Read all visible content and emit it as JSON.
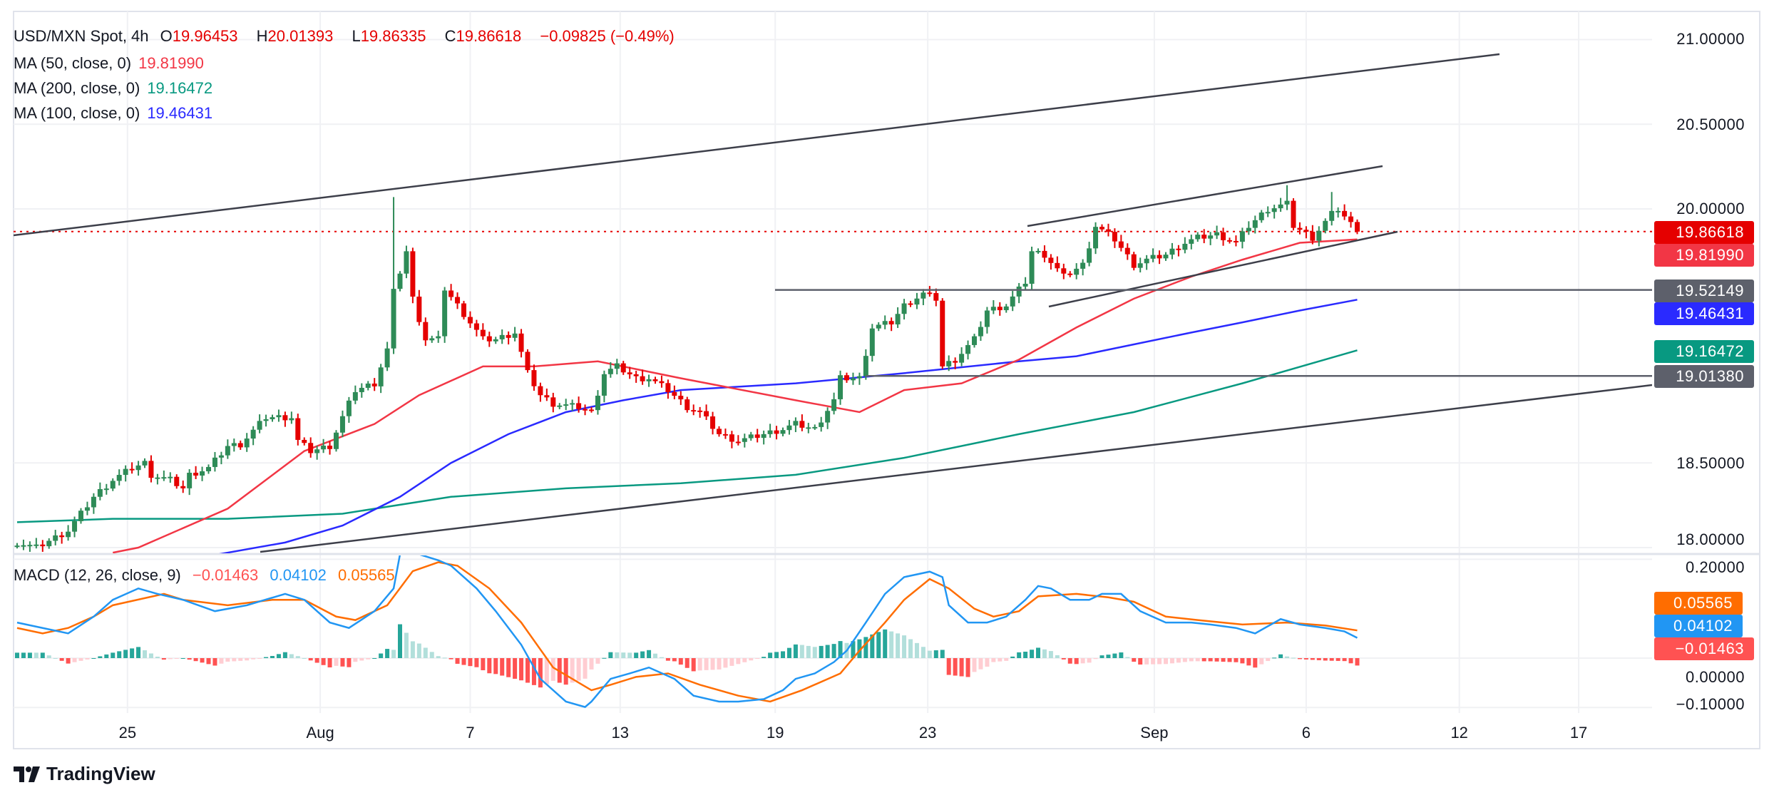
{
  "header": {
    "symbol": "USD/MXN Spot, 4h",
    "o_label": "O",
    "open": "19.96453",
    "h_label": "H",
    "high": "20.01393",
    "l_label": "L",
    "low": "19.86335",
    "c_label": "C",
    "close": "19.86618",
    "change": "−0.09825 (−0.49%)"
  },
  "indicators": [
    {
      "label": "MA (50, close, 0)",
      "value": "19.81990",
      "color": "#f23645"
    },
    {
      "label": "MA (200, close, 0)",
      "value": "19.16472",
      "color": "#089981"
    },
    {
      "label": "MA (100, close, 0)",
      "value": "19.46431",
      "color": "#2a2aff"
    }
  ],
  "macd_legend": {
    "label": "MACD (12, 26, close, 9)",
    "hist": "−0.01463",
    "macd": "0.04102",
    "signal": "0.05565"
  },
  "price_axis": [
    "21.00000",
    "20.50000",
    "20.00000",
    "18.50000",
    "18.00000"
  ],
  "macd_axis": [
    "0.20000",
    "0.00000",
    "−0.10000"
  ],
  "price_labels": [
    {
      "text": "19.86618",
      "color": "#e50000"
    },
    {
      "text": "19.81990",
      "color": "#f23645"
    },
    {
      "text": "19.52149",
      "color": "#5d606b"
    },
    {
      "text": "19.46431",
      "color": "#2a2aff"
    },
    {
      "text": "19.16472",
      "color": "#089981"
    },
    {
      "text": "19.01380",
      "color": "#5d606b"
    }
  ],
  "macd_labels": [
    {
      "text": "0.05565",
      "color": "#ff6d00"
    },
    {
      "text": "0.04102",
      "color": "#2196f3"
    },
    {
      "text": "−0.01463",
      "color": "#ff5252"
    }
  ],
  "time_axis": [
    {
      "label": "25",
      "bar": 17.3
    },
    {
      "label": "Aug",
      "bar": 47.5
    },
    {
      "label": "7",
      "bar": 71
    },
    {
      "label": "13",
      "bar": 94.5
    },
    {
      "label": "19",
      "bar": 118.8
    },
    {
      "label": "23",
      "bar": 142.7
    },
    {
      "label": "Sep",
      "bar": 178.2
    },
    {
      "label": "6",
      "bar": 202
    },
    {
      "label": "12",
      "bar": 226
    },
    {
      "label": "17",
      "bar": 244.7
    }
  ],
  "brand": "TradingView",
  "chart_data": {
    "type": "candlestick",
    "title": "USD/MXN Spot, 4h",
    "ylim": [
      17.98,
      21.2
    ],
    "last_close": 19.86618,
    "horizontal_levels": [
      19.52149,
      19.0138
    ],
    "close_path": [
      [
        0,
        18.03
      ],
      [
        3,
        18.0
      ],
      [
        8,
        18.1
      ],
      [
        10,
        18.2
      ],
      [
        12,
        18.3
      ],
      [
        15,
        18.4
      ],
      [
        18,
        18.47
      ],
      [
        20,
        18.5
      ],
      [
        21,
        18.43
      ],
      [
        24,
        18.4
      ],
      [
        26,
        18.35
      ],
      [
        27,
        18.43
      ],
      [
        30,
        18.47
      ],
      [
        33,
        18.6
      ],
      [
        35,
        18.61
      ],
      [
        39,
        18.77
      ],
      [
        43,
        18.77
      ],
      [
        44,
        18.63
      ],
      [
        46,
        18.57
      ],
      [
        49,
        18.6
      ],
      [
        51,
        18.77
      ],
      [
        53,
        18.93
      ],
      [
        56,
        18.97
      ],
      [
        58,
        19.17
      ],
      [
        59,
        19.51
      ],
      [
        60,
        19.63
      ],
      [
        61,
        19.75
      ],
      [
        62,
        19.47
      ],
      [
        64,
        19.23
      ],
      [
        66,
        19.23
      ],
      [
        67,
        19.53
      ],
      [
        69,
        19.43
      ],
      [
        71,
        19.33
      ],
      [
        73,
        19.23
      ],
      [
        75,
        19.23
      ],
      [
        78,
        19.27
      ],
      [
        80,
        19.03
      ],
      [
        82,
        18.9
      ],
      [
        84,
        18.85
      ],
      [
        88,
        18.83
      ],
      [
        90,
        18.8
      ],
      [
        92,
        19.03
      ],
      [
        94,
        19.07
      ],
      [
        97,
        19.0
      ],
      [
        99,
        19.0
      ],
      [
        102,
        18.93
      ],
      [
        105,
        18.83
      ],
      [
        107,
        18.8
      ],
      [
        110,
        18.67
      ],
      [
        113,
        18.63
      ],
      [
        117,
        18.67
      ],
      [
        120,
        18.7
      ],
      [
        122,
        18.73
      ],
      [
        125,
        18.7
      ],
      [
        128,
        18.87
      ],
      [
        129,
        19.0
      ],
      [
        132,
        19.0
      ],
      [
        134,
        19.3
      ],
      [
        137,
        19.33
      ],
      [
        139,
        19.43
      ],
      [
        142,
        19.5
      ],
      [
        144,
        19.47
      ],
      [
        145,
        19.07
      ],
      [
        147,
        19.11
      ],
      [
        150,
        19.23
      ],
      [
        152,
        19.4
      ],
      [
        155,
        19.43
      ],
      [
        158,
        19.57
      ],
      [
        159,
        19.75
      ],
      [
        161,
        19.73
      ],
      [
        164,
        19.6
      ],
      [
        167,
        19.67
      ],
      [
        169,
        19.9
      ],
      [
        172,
        19.82
      ],
      [
        175,
        19.67
      ],
      [
        177,
        19.7
      ],
      [
        180,
        19.73
      ],
      [
        183,
        19.8
      ],
      [
        185,
        19.83
      ],
      [
        188,
        19.85
      ],
      [
        191,
        19.8
      ],
      [
        193,
        19.9
      ],
      [
        196,
        20.0
      ],
      [
        199,
        20.03
      ],
      [
        200,
        19.9
      ],
      [
        203,
        19.83
      ],
      [
        206,
        19.97
      ],
      [
        207,
        20.0
      ],
      [
        210,
        19.866
      ]
    ],
    "spike_highs": [
      [
        59,
        20.07
      ],
      [
        199,
        20.14
      ],
      [
        206,
        20.1
      ]
    ],
    "ma50": [
      [
        15,
        17.97
      ],
      [
        19,
        18.0
      ],
      [
        33,
        18.23
      ],
      [
        45,
        18.57
      ],
      [
        56,
        18.73
      ],
      [
        63,
        18.9
      ],
      [
        73,
        19.07
      ],
      [
        81,
        19.07
      ],
      [
        91,
        19.1
      ],
      [
        104,
        19.0
      ],
      [
        122,
        18.87
      ],
      [
        132,
        18.8
      ],
      [
        139,
        18.93
      ],
      [
        148,
        18.97
      ],
      [
        157,
        19.11
      ],
      [
        166,
        19.3
      ],
      [
        175,
        19.47
      ],
      [
        184,
        19.6
      ],
      [
        192,
        19.7
      ],
      [
        201,
        19.8
      ],
      [
        210,
        19.82
      ]
    ],
    "ma100": [
      [
        30,
        17.95
      ],
      [
        42,
        18.03
      ],
      [
        51,
        18.13
      ],
      [
        60,
        18.3
      ],
      [
        68,
        18.5
      ],
      [
        77,
        18.67
      ],
      [
        86,
        18.8
      ],
      [
        95,
        18.87
      ],
      [
        104,
        18.93
      ],
      [
        122,
        18.97
      ],
      [
        139,
        19.03
      ],
      [
        157,
        19.1
      ],
      [
        166,
        19.13
      ],
      [
        175,
        19.2
      ],
      [
        184,
        19.27
      ],
      [
        192,
        19.33
      ],
      [
        201,
        19.4
      ],
      [
        210,
        19.464
      ]
    ],
    "ma200": [
      [
        0,
        18.15
      ],
      [
        15,
        18.17
      ],
      [
        33,
        18.17
      ],
      [
        51,
        18.2
      ],
      [
        68,
        18.3
      ],
      [
        86,
        18.35
      ],
      [
        104,
        18.38
      ],
      [
        122,
        18.43
      ],
      [
        139,
        18.53
      ],
      [
        157,
        18.67
      ],
      [
        175,
        18.8
      ],
      [
        192,
        18.97
      ],
      [
        210,
        19.165
      ]
    ],
    "macd": [
      [
        0,
        0.072
      ],
      [
        4,
        0.061
      ],
      [
        8,
        0.05
      ],
      [
        12,
        0.084
      ],
      [
        15,
        0.118
      ],
      [
        19,
        0.141
      ],
      [
        22,
        0.13
      ],
      [
        26,
        0.118
      ],
      [
        31,
        0.095
      ],
      [
        36,
        0.107
      ],
      [
        42,
        0.13
      ],
      [
        45,
        0.118
      ],
      [
        49,
        0.072
      ],
      [
        52,
        0.061
      ],
      [
        56,
        0.095
      ],
      [
        59,
        0.141
      ],
      [
        60,
        0.21
      ],
      [
        63,
        0.21
      ],
      [
        66,
        0.198
      ],
      [
        68,
        0.187
      ],
      [
        72,
        0.141
      ],
      [
        75,
        0.095
      ],
      [
        79,
        0.027
      ],
      [
        82,
        -0.042
      ],
      [
        86,
        -0.088
      ],
      [
        89,
        -0.099
      ],
      [
        90,
        -0.088
      ],
      [
        93,
        -0.042
      ],
      [
        96,
        -0.031
      ],
      [
        99,
        -0.019
      ],
      [
        103,
        -0.042
      ],
      [
        106,
        -0.076
      ],
      [
        110,
        -0.088
      ],
      [
        113,
        -0.088
      ],
      [
        117,
        -0.083
      ],
      [
        120,
        -0.065
      ],
      [
        122,
        -0.042
      ],
      [
        125,
        -0.031
      ],
      [
        128,
        -0.008
      ],
      [
        130,
        0.015
      ],
      [
        133,
        0.072
      ],
      [
        136,
        0.13
      ],
      [
        139,
        0.164
      ],
      [
        143,
        0.175
      ],
      [
        145,
        0.164
      ],
      [
        146,
        0.107
      ],
      [
        149,
        0.072
      ],
      [
        152,
        0.072
      ],
      [
        155,
        0.084
      ],
      [
        158,
        0.118
      ],
      [
        160,
        0.146
      ],
      [
        162,
        0.141
      ],
      [
        165,
        0.118
      ],
      [
        168,
        0.118
      ],
      [
        170,
        0.13
      ],
      [
        173,
        0.13
      ],
      [
        176,
        0.095
      ],
      [
        180,
        0.072
      ],
      [
        184,
        0.072
      ],
      [
        187,
        0.068
      ],
      [
        191,
        0.061
      ],
      [
        194,
        0.05
      ],
      [
        198,
        0.079
      ],
      [
        201,
        0.068
      ],
      [
        205,
        0.061
      ],
      [
        208,
        0.054
      ],
      [
        210,
        0.041
      ]
    ],
    "signal": [
      [
        0,
        0.061
      ],
      [
        4,
        0.05
      ],
      [
        8,
        0.061
      ],
      [
        12,
        0.084
      ],
      [
        15,
        0.107
      ],
      [
        23,
        0.13
      ],
      [
        26,
        0.118
      ],
      [
        33,
        0.107
      ],
      [
        40,
        0.118
      ],
      [
        45,
        0.118
      ],
      [
        50,
        0.084
      ],
      [
        53,
        0.077
      ],
      [
        58,
        0.107
      ],
      [
        62,
        0.176
      ],
      [
        66,
        0.194
      ],
      [
        69,
        0.187
      ],
      [
        74,
        0.141
      ],
      [
        79,
        0.072
      ],
      [
        84,
        -0.019
      ],
      [
        90,
        -0.065
      ],
      [
        93,
        -0.054
      ],
      [
        97,
        -0.038
      ],
      [
        102,
        -0.031
      ],
      [
        107,
        -0.054
      ],
      [
        113,
        -0.076
      ],
      [
        118,
        -0.088
      ],
      [
        123,
        -0.065
      ],
      [
        129,
        -0.031
      ],
      [
        132,
        0.015
      ],
      [
        136,
        0.072
      ],
      [
        139,
        0.118
      ],
      [
        143,
        0.16
      ],
      [
        146,
        0.141
      ],
      [
        150,
        0.1
      ],
      [
        153,
        0.084
      ],
      [
        157,
        0.095
      ],
      [
        160,
        0.125
      ],
      [
        166,
        0.13
      ],
      [
        171,
        0.123
      ],
      [
        175,
        0.114
      ],
      [
        180,
        0.084
      ],
      [
        185,
        0.077
      ],
      [
        192,
        0.068
      ],
      [
        199,
        0.072
      ],
      [
        205,
        0.066
      ],
      [
        210,
        0.056
      ]
    ],
    "macd_ylim": [
      -0.11,
      0.2
    ],
    "colors": {
      "up": "#2e8b57",
      "down": "#e50000",
      "ma50": "#f23645",
      "ma100": "#2a2aff",
      "ma200": "#089981",
      "macd": "#2196f3",
      "signal": "#ff6d00",
      "hist_up": "#26a69a",
      "hist_up_fade": "#b2dfdb",
      "hist_down": "#ff5252",
      "hist_down_fade": "#ffcdd2"
    }
  }
}
